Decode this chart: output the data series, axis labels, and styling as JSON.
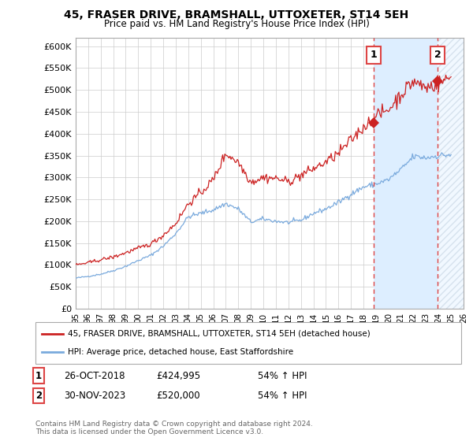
{
  "title": "45, FRASER DRIVE, BRAMSHALL, UTTOXETER, ST14 5EH",
  "subtitle": "Price paid vs. HM Land Registry's House Price Index (HPI)",
  "xlim_start": 1995,
  "xlim_end": 2026,
  "ylim_min": 0,
  "ylim_max": 620000,
  "yticks": [
    0,
    50000,
    100000,
    150000,
    200000,
    250000,
    300000,
    350000,
    400000,
    450000,
    500000,
    550000,
    600000
  ],
  "ytick_labels": [
    "£0",
    "£50K",
    "£100K",
    "£150K",
    "£200K",
    "£250K",
    "£300K",
    "£350K",
    "£400K",
    "£450K",
    "£500K",
    "£550K",
    "£600K"
  ],
  "hpi_color": "#7aaadd",
  "price_color": "#cc2222",
  "vline_color": "#dd4444",
  "marker1_year": 2018.83,
  "marker2_year": 2023.92,
  "marker1_price": 424995,
  "marker2_price": 520000,
  "marker1_label": "1",
  "marker2_label": "2",
  "legend_line1": "45, FRASER DRIVE, BRAMSHALL, UTTOXETER, ST14 5EH (detached house)",
  "legend_line2": "HPI: Average price, detached house, East Staffordshire",
  "footer": "Contains HM Land Registry data © Crown copyright and database right 2024.\nThis data is licensed under the Open Government Licence v3.0.",
  "background_color": "#ffffff",
  "grid_color": "#cccccc",
  "shade_color": "#ddeeff",
  "ann1_date": "26-OCT-2018",
  "ann1_price": "£424,995",
  "ann1_pct": "54% ↑ HPI",
  "ann2_date": "30-NOV-2023",
  "ann2_price": "£520,000",
  "ann2_pct": "54% ↑ HPI"
}
